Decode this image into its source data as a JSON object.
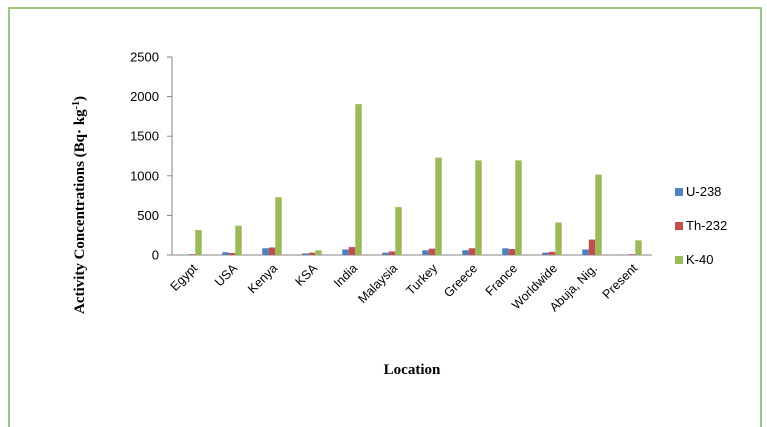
{
  "chart_data": {
    "type": "bar",
    "xlabel": "Location",
    "ylabel": "Activity Concentrations (Bq· kg",
    "ylabel_sup": "-1",
    "ylabel_close": ")",
    "ylim": [
      0,
      2500
    ],
    "yticks": [
      0,
      500,
      1000,
      1500,
      2000,
      2500
    ],
    "categories": [
      "Egypt",
      "USA",
      "Kenya",
      "KSA",
      "India",
      "Malaysia",
      "Turkey",
      "Greece",
      "France",
      "Worldwide",
      "Abuja, Nig.",
      "Present"
    ],
    "series": [
      {
        "name": "U-238",
        "color": "#4f81bd",
        "values": [
          5,
          35,
          85,
          20,
          70,
          30,
          60,
          60,
          85,
          30,
          70,
          5
        ]
      },
      {
        "name": "Th-232",
        "color": "#c0504d",
        "values": [
          10,
          25,
          95,
          30,
          100,
          45,
          80,
          85,
          75,
          40,
          195,
          10
        ]
      },
      {
        "name": "K-40",
        "color": "#9bbb59",
        "values": [
          315,
          370,
          730,
          60,
          1905,
          605,
          1230,
          1195,
          1195,
          410,
          1015,
          185
        ]
      }
    ],
    "legend": "right",
    "grid": false
  }
}
